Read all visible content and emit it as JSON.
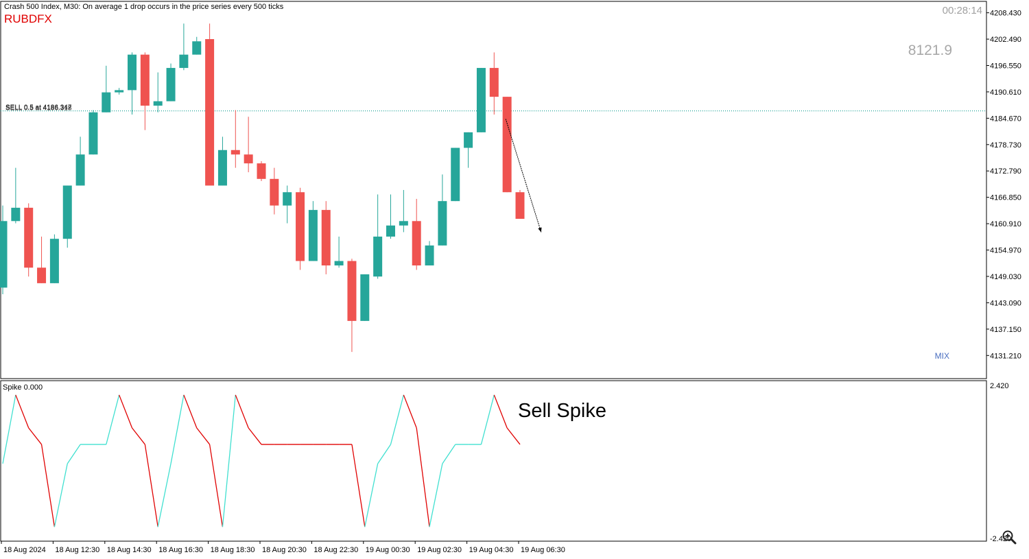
{
  "header": {
    "title": "Crash 500 Index, M30:  On average 1 drop occurs in the price series every 500 ticks",
    "brand": "RUBDFX",
    "timer": "00:28:14",
    "big_value": "8121.9",
    "mix_label": "MIX"
  },
  "trade_lines": [
    {
      "label": "SELL 0.5 at 4186.347",
      "price": 4186.347
    },
    {
      "label": "SELL 0.5 at 4186.318",
      "price": 4186.318
    }
  ],
  "price_axis": {
    "ticks": [
      "4208.430",
      "4202.490",
      "4196.550",
      "4190.610",
      "4184.670",
      "4178.730",
      "4172.790",
      "4166.850",
      "4160.910",
      "4154.970",
      "4149.030",
      "4143.090",
      "4137.150",
      "4131.210"
    ],
    "min": 4126.0,
    "max": 4211.0
  },
  "time_axis": {
    "labels": [
      {
        "text": "18 Aug 2024",
        "index": -0.5
      },
      {
        "text": "18 Aug 12:30",
        "index": 4
      },
      {
        "text": "18 Aug 14:30",
        "index": 8
      },
      {
        "text": "18 Aug 16:30",
        "index": 12
      },
      {
        "text": "18 Aug 18:30",
        "index": 16
      },
      {
        "text": "18 Aug 20:30",
        "index": 20
      },
      {
        "text": "18 Aug 22:30",
        "index": 24
      },
      {
        "text": "19 Aug 00:30",
        "index": 28
      },
      {
        "text": "19 Aug 02:30",
        "index": 32
      },
      {
        "text": "19 Aug 04:30",
        "index": 36
      },
      {
        "text": "19 Aug 06:30",
        "index": 40
      }
    ]
  },
  "indicator": {
    "label": "Spike 0.000",
    "max_label": "2.420",
    "min_label": "-2.420",
    "max": 2.42,
    "min": -2.42,
    "annotation": "Sell Spike",
    "up_color": "#40e0d0",
    "down_color": "#e00000",
    "values": [
      -0.1,
      2.4,
      1.2,
      0.6,
      -2.4,
      -0.1,
      0.6,
      0.6,
      0.6,
      2.4,
      1.2,
      0.6,
      -2.4,
      -0.1,
      2.4,
      1.2,
      0.6,
      -2.4,
      2.4,
      1.2,
      0.6,
      0.6,
      0.6,
      0.6,
      0.6,
      0.6,
      0.6,
      0.6,
      -2.4,
      -0.1,
      0.6,
      2.4,
      1.2,
      -2.4,
      -0.1,
      0.6,
      0.6,
      0.6,
      2.4,
      1.2,
      0.6
    ]
  },
  "colors": {
    "bull": "#26a69a",
    "bear": "#ef5350",
    "grid": "#c8c8c8",
    "trade_line": "#26a69a",
    "brand": "#e00000",
    "timer": "#a0a0a0",
    "big_value": "#a8a8a8",
    "mix": "#4a6fc0"
  },
  "icons": {
    "zoom": "zoom-in-icon"
  },
  "chart_data": {
    "type": "candlestick",
    "series": [
      {
        "o": 4146.5,
        "h": 4165.0,
        "l": 4145.0,
        "c": 4161.5
      },
      {
        "o": 4161.5,
        "h": 4173.5,
        "l": 4161.0,
        "c": 4164.5
      },
      {
        "o": 4164.5,
        "h": 4165.5,
        "l": 4149.0,
        "c": 4151.0
      },
      {
        "o": 4151.0,
        "h": 4158.0,
        "l": 4147.5,
        "c": 4147.5
      },
      {
        "o": 4147.5,
        "h": 4158.5,
        "l": 4147.5,
        "c": 4157.5
      },
      {
        "o": 4157.5,
        "h": 4169.5,
        "l": 4155.5,
        "c": 4169.5
      },
      {
        "o": 4169.5,
        "h": 4180.5,
        "l": 4169.5,
        "c": 4176.5
      },
      {
        "o": 4176.5,
        "h": 4186.5,
        "l": 4176.5,
        "c": 4186.0
      },
      {
        "o": 4186.0,
        "h": 4196.5,
        "l": 4186.0,
        "c": 4190.5
      },
      {
        "o": 4190.5,
        "h": 4191.5,
        "l": 4190.0,
        "c": 4191.0
      },
      {
        "o": 4191.0,
        "h": 4199.5,
        "l": 4185.5,
        "c": 4199.0
      },
      {
        "o": 4199.0,
        "h": 4199.5,
        "l": 4182.0,
        "c": 4187.5
      },
      {
        "o": 4187.5,
        "h": 4195.0,
        "l": 4186.0,
        "c": 4188.5
      },
      {
        "o": 4188.5,
        "h": 4197.0,
        "l": 4188.5,
        "c": 4196.0
      },
      {
        "o": 4196.0,
        "h": 4206.0,
        "l": 4195.5,
        "c": 4199.0
      },
      {
        "o": 4199.0,
        "h": 4203.0,
        "l": 4199.0,
        "c": 4202.0
      },
      {
        "o": 4202.5,
        "h": 4206.0,
        "l": 4169.5,
        "c": 4169.5
      },
      {
        "o": 4169.5,
        "h": 4180.5,
        "l": 4169.5,
        "c": 4177.5
      },
      {
        "o": 4177.5,
        "h": 4186.5,
        "l": 4173.5,
        "c": 4176.5
      },
      {
        "o": 4176.5,
        "h": 4185.0,
        "l": 4172.5,
        "c": 4174.5
      },
      {
        "o": 4174.5,
        "h": 4175.0,
        "l": 4170.5,
        "c": 4171.0
      },
      {
        "o": 4171.0,
        "h": 4173.5,
        "l": 4163.0,
        "c": 4165.0
      },
      {
        "o": 4165.0,
        "h": 4169.5,
        "l": 4161.0,
        "c": 4168.0
      },
      {
        "o": 4168.0,
        "h": 4169.0,
        "l": 4150.5,
        "c": 4152.5
      },
      {
        "o": 4152.5,
        "h": 4166.0,
        "l": 4152.5,
        "c": 4164.0
      },
      {
        "o": 4164.0,
        "h": 4166.0,
        "l": 4149.5,
        "c": 4151.5
      },
      {
        "o": 4151.5,
        "h": 4158.0,
        "l": 4151.0,
        "c": 4152.5
      },
      {
        "o": 4152.5,
        "h": 4153.0,
        "l": 4132.0,
        "c": 4139.0
      },
      {
        "o": 4139.0,
        "h": 4149.5,
        "l": 4139.0,
        "c": 4149.5
      },
      {
        "o": 4149.0,
        "h": 4167.5,
        "l": 4148.5,
        "c": 4158.0
      },
      {
        "o": 4158.0,
        "h": 4167.5,
        "l": 4157.5,
        "c": 4160.5
      },
      {
        "o": 4160.5,
        "h": 4168.5,
        "l": 4159.0,
        "c": 4161.5
      },
      {
        "o": 4161.5,
        "h": 4166.5,
        "l": 4150.5,
        "c": 4151.5
      },
      {
        "o": 4151.5,
        "h": 4157.0,
        "l": 4151.5,
        "c": 4156.0
      },
      {
        "o": 4156.0,
        "h": 4172.0,
        "l": 4156.0,
        "c": 4166.0
      },
      {
        "o": 4166.0,
        "h": 4178.0,
        "l": 4166.0,
        "c": 4178.0
      },
      {
        "o": 4178.0,
        "h": 4181.5,
        "l": 4173.5,
        "c": 4181.5
      },
      {
        "o": 4181.5,
        "h": 4196.0,
        "l": 4181.5,
        "c": 4196.0
      },
      {
        "o": 4196.0,
        "h": 4199.5,
        "l": 4185.5,
        "c": 4189.5
      },
      {
        "o": 4189.5,
        "h": 4189.5,
        "l": 4168.0,
        "c": 4168.0
      },
      {
        "o": 4168.0,
        "h": 4168.5,
        "l": 4162.0,
        "c": 4162.0
      }
    ]
  }
}
